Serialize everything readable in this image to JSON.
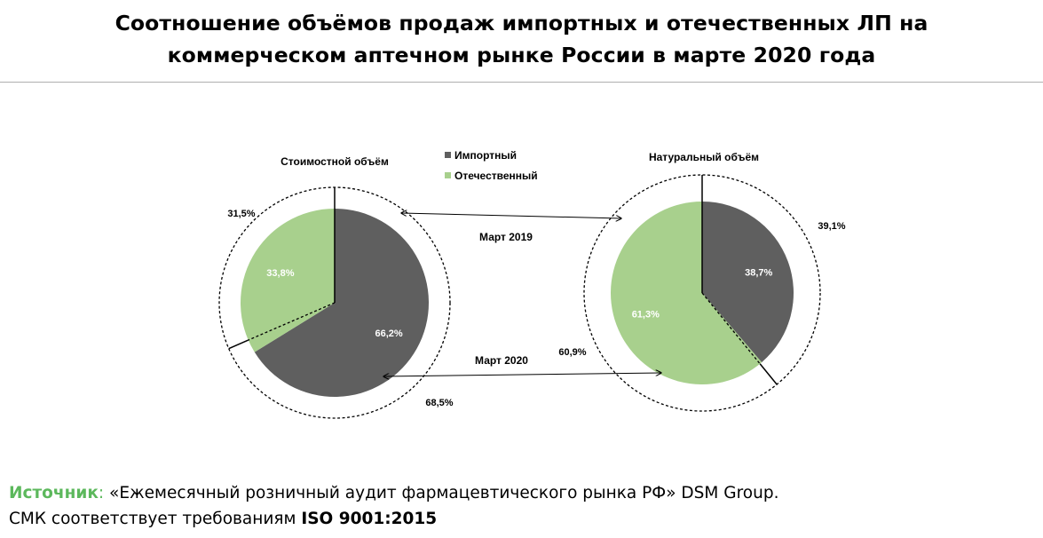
{
  "title": {
    "line1": "Соотношение объёмов продаж импортных и отечественных ЛП на",
    "line2": "коммерческом аптечном рынке России в марте 2020 года"
  },
  "colors": {
    "imported": "#5f5f5f",
    "domestic": "#a8d08d",
    "source_label": "#5cb85c"
  },
  "chart_data": {
    "type": "pie",
    "legend": {
      "placement": "top-center",
      "entries": [
        "Импортный",
        "Отечественный"
      ]
    },
    "series_names": [
      "Импортный",
      "Отечественный"
    ],
    "pies": [
      {
        "title": "Стоимостной объём",
        "period_inner": "Март 2020",
        "period_outer": "Март 2019",
        "inner": [
          {
            "name": "Импортный",
            "value": 66.2,
            "label": "66,2%"
          },
          {
            "name": "Отечественный",
            "value": 33.8,
            "label": "33,8%"
          }
        ],
        "outer": [
          {
            "name": "Импортный",
            "value": 68.5,
            "label": "68,5%"
          },
          {
            "name": "Отечественный",
            "value": 31.5,
            "label": "31,5%"
          }
        ]
      },
      {
        "title": "Натуральный объём",
        "period_inner": "Март 2020",
        "period_outer": "Март 2019",
        "inner": [
          {
            "name": "Импортный",
            "value": 38.7,
            "label": "38,7%"
          },
          {
            "name": "Отечественный",
            "value": 61.3,
            "label": "61,3%"
          }
        ],
        "outer": [
          {
            "name": "Импортный",
            "value": 39.1,
            "label": "39,1%"
          },
          {
            "name": "Отечественный",
            "value": 60.9,
            "label": "60,9%"
          }
        ]
      }
    ],
    "annotations": [
      "Март 2019",
      "Март 2020"
    ]
  },
  "source": {
    "label": "Источник",
    "colon": ":",
    "text": " «Ежемесячный розничный аудит фармацевтического рынка РФ» DSM Group.",
    "line2_prefix": "СМК соответствует требованиям ",
    "line2_bold": "ISO 9001:2015"
  }
}
